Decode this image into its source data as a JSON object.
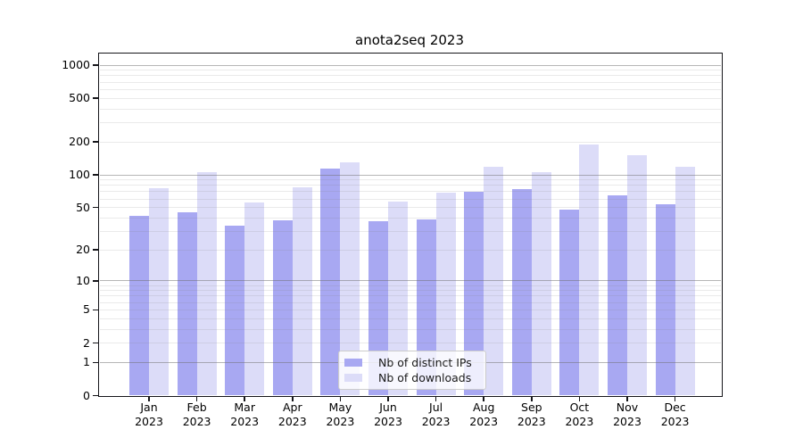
{
  "chart_data": {
    "type": "bar",
    "title": "anota2seq 2023",
    "categories": [
      "Jan 2023",
      "Feb 2023",
      "Mar 2023",
      "Apr 2023",
      "May 2023",
      "Jun 2023",
      "Jul 2023",
      "Aug 2023",
      "Sep 2023",
      "Oct 2023",
      "Nov 2023",
      "Dec 2023"
    ],
    "series": [
      {
        "name": "Nb of distinct IPs",
        "color": "#a8a8f2",
        "values": [
          42,
          45,
          34,
          38,
          115,
          37,
          39,
          70,
          74,
          48,
          65,
          54
        ]
      },
      {
        "name": "Nb of downloads",
        "color": "#dcdcf8",
        "values": [
          75,
          105,
          56,
          77,
          130,
          57,
          69,
          119,
          105,
          190,
          152,
          119
        ]
      }
    ],
    "yscale": "log1p",
    "yticks": [
      0,
      1,
      2,
      5,
      10,
      20,
      50,
      100,
      200,
      500,
      1000
    ],
    "ylim": [
      0,
      1300
    ],
    "xlabel": "",
    "ylabel": "",
    "grid": "horizontal, log minors, drawn over bars",
    "legend_position": "lower center"
  },
  "colors": {
    "background": "#ffffff",
    "axis": "#15151a",
    "grid_major": "#b7b7b7",
    "grid_minor": "#e6e6e6",
    "legend_border": "#cccccc"
  }
}
